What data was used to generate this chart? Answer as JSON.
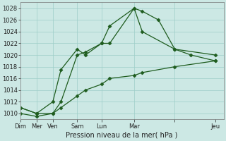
{
  "bg_color": "#cce8e4",
  "grid_color": "#9ecec8",
  "line_color": "#1e5c1e",
  "title": "Pression niveau de la mer( hPa )",
  "ylim": [
    1009,
    1029
  ],
  "yticks": [
    1010,
    1012,
    1014,
    1016,
    1018,
    1020,
    1022,
    1024,
    1026,
    1028
  ],
  "xtick_positions": [
    0,
    2,
    4,
    7,
    10,
    14,
    19,
    24
  ],
  "xtick_labels": [
    "Dim",
    "Mer",
    "Ven",
    "Sam",
    "Lun",
    "Mar",
    "",
    "Jeu"
  ],
  "xlim": [
    0,
    25
  ],
  "series1_x": [
    0,
    2,
    4,
    5,
    7,
    8,
    10,
    11,
    14,
    15,
    17,
    19,
    21,
    24
  ],
  "series1_y": [
    1011,
    1010,
    1010,
    1012,
    1020,
    1020.5,
    1022,
    1022,
    1028,
    1027.5,
    1026,
    1021,
    1020,
    1019
  ],
  "series2_x": [
    0,
    2,
    4,
    5,
    7,
    8,
    10,
    11,
    14,
    15,
    19,
    24
  ],
  "series2_y": [
    1011,
    1010,
    1012,
    1017.5,
    1021,
    1020,
    1022,
    1025,
    1028,
    1024,
    1021,
    1020
  ],
  "series3_x": [
    0,
    2,
    4,
    5,
    7,
    8,
    10,
    11,
    14,
    15,
    19,
    24
  ],
  "series3_y": [
    1010,
    1009.5,
    1010,
    1011,
    1013,
    1014,
    1015,
    1016,
    1016.5,
    1017,
    1018,
    1019
  ],
  "vlines": [
    2,
    4,
    7,
    10,
    14,
    19
  ],
  "yticklabelsize": 6,
  "xticklabelsize": 6,
  "title_fontsize": 7
}
